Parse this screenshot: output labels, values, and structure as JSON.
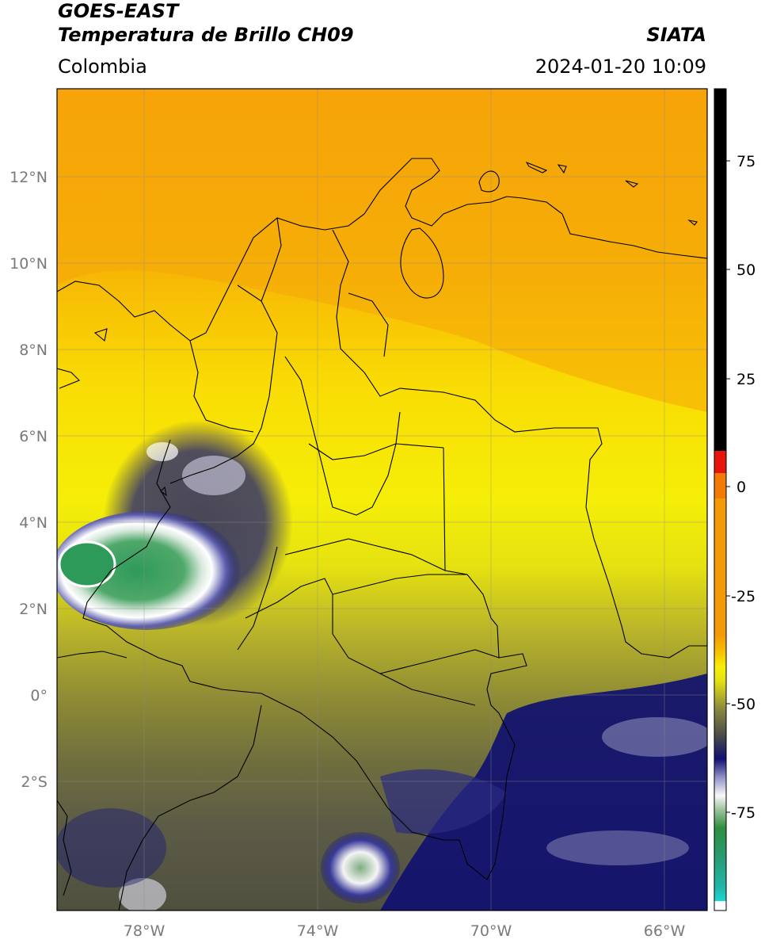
{
  "header": {
    "title_line1": "GOES-EAST",
    "title_line2": "Temperatura de Brillo CH09",
    "region": "Colombia",
    "brand": "SIATA",
    "datetime": "2024-01-20 10:09"
  },
  "map": {
    "lon_ticks": [
      "78°W",
      "74°W",
      "70°W",
      "66°W"
    ],
    "lat_ticks": [
      "12°N",
      "10°N",
      "8°N",
      "6°N",
      "4°N",
      "2°N",
      "0°",
      "2°S"
    ],
    "extent": {
      "lon_min": -80.0,
      "lon_max": -65.0,
      "lat_min": -4.9,
      "lat_max": 14.0
    }
  },
  "colorbar": {
    "ticks": [
      "75",
      "50",
      "25",
      "0",
      "-25",
      "-50",
      "-75"
    ],
    "range": [
      -95,
      90
    ],
    "colors": {
      "hot": "#000000",
      "red": "#e8150a",
      "orange": "#f39a07",
      "yellow": "#f7ee07",
      "olive": "#6d6d3a",
      "navy": "#101070",
      "white": "#f8f8f8",
      "green": "#2f8f3f",
      "cyan": "#1ad6d0"
    }
  }
}
